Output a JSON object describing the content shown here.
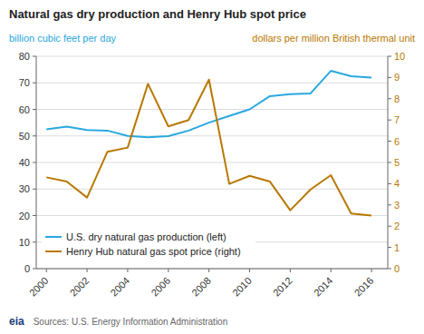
{
  "chart_data": {
    "type": "line",
    "title": "Natural gas dry production and Henry Hub spot price",
    "ylabel": "billion cubic feet per day",
    "y2label": "dollars per million British thermal unit",
    "x": [
      2000,
      2001,
      2002,
      2003,
      2004,
      2005,
      2006,
      2007,
      2008,
      2009,
      2010,
      2011,
      2012,
      2013,
      2014,
      2015,
      2016
    ],
    "xlim": [
      1999.5,
      2016.8
    ],
    "xticks": [
      2000,
      2002,
      2004,
      2006,
      2008,
      2010,
      2012,
      2014,
      2016
    ],
    "ylim": [
      0,
      80
    ],
    "yticks": [
      0,
      10,
      20,
      30,
      40,
      50,
      60,
      70,
      80
    ],
    "y2lim": [
      0,
      10
    ],
    "y2ticks": [
      0,
      1,
      2,
      3,
      4,
      5,
      6,
      7,
      8,
      9,
      10
    ],
    "grid": true,
    "legend": "lower left",
    "series": [
      {
        "name": "U.S. dry natural gas production (left)",
        "color": "#29a8e0",
        "axis": "y",
        "values": [
          52.5,
          53.5,
          52.2,
          52.0,
          50.0,
          49.5,
          49.9,
          52.0,
          55.0,
          57.5,
          60.0,
          65.0,
          65.7,
          66.0,
          74.5,
          72.5,
          72.0
        ]
      },
      {
        "name": "Henry Hub natural gas spot price (right)",
        "color": "#b87800",
        "axis": "y2",
        "values": [
          4.3,
          4.1,
          3.35,
          5.5,
          5.7,
          8.7,
          6.7,
          7.0,
          8.9,
          3.99,
          4.37,
          4.1,
          2.75,
          3.73,
          4.4,
          2.6,
          2.5
        ]
      }
    ],
    "annotations": [
      {
        "text": "eia"
      },
      {
        "text": "Sources: U.S. Energy Information Administration"
      }
    ]
  }
}
